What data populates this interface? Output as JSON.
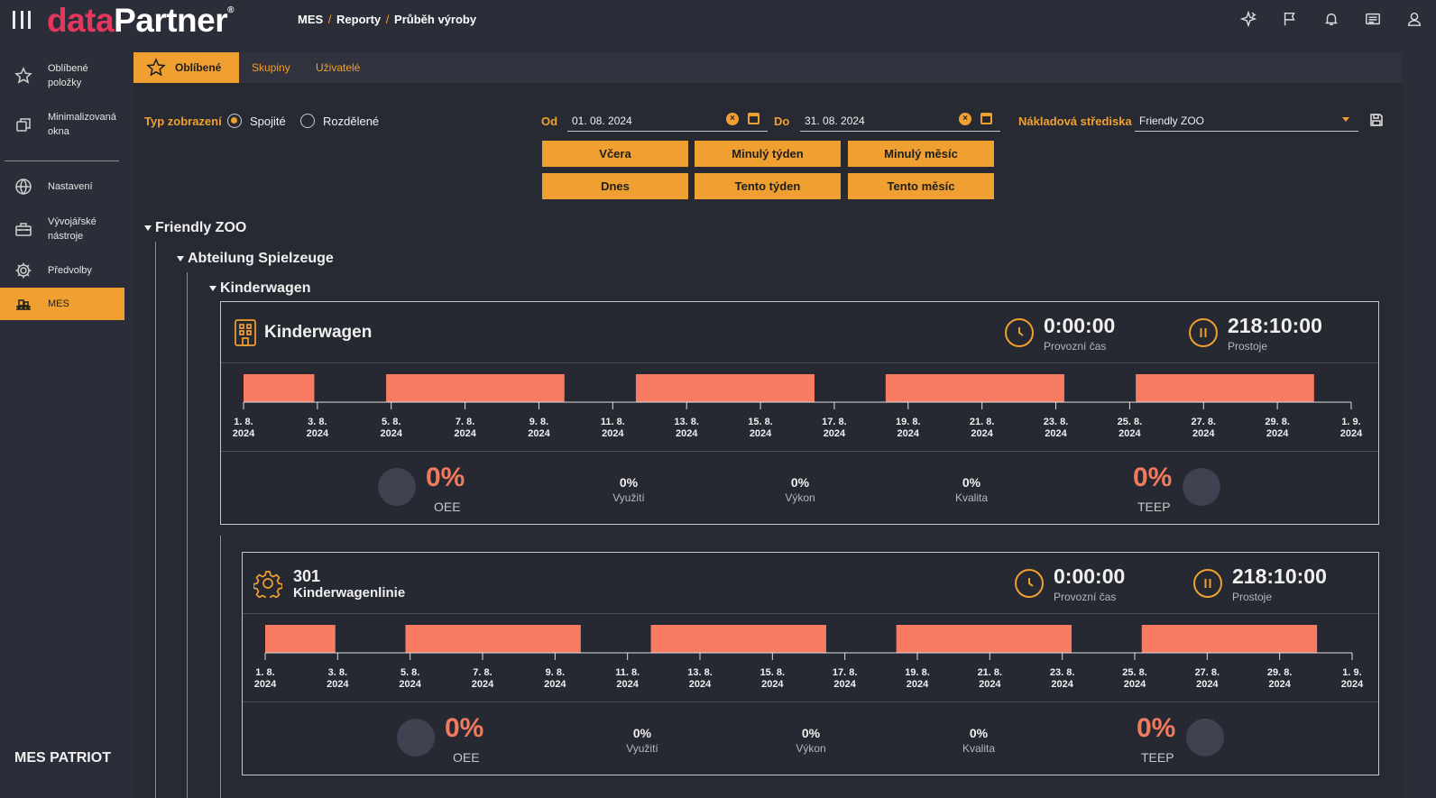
{
  "app": {
    "logo_part1": "data",
    "logo_part2": "Partner",
    "logo_reg": "®",
    "breadcrumb": [
      "MES",
      "Reporty",
      "Průběh výroby"
    ],
    "breadcrumb_sep": "/"
  },
  "topbar": {
    "icons": [
      "ai-sparkle-icon",
      "flag-icon",
      "bell-icon",
      "news-icon",
      "user-icon"
    ]
  },
  "sidebar": {
    "items": [
      {
        "label": "Oblíbené položky",
        "icon": "star-icon"
      },
      {
        "label": "Minimalizovaná okna",
        "icon": "windows-icon"
      },
      {
        "label": "Nastavení",
        "icon": "globe-icon"
      },
      {
        "label": "Vývojářské nástroje",
        "icon": "toolbox-icon"
      },
      {
        "label": "Předvolby",
        "icon": "gear-icon"
      },
      {
        "label": "MES",
        "icon": "conveyor-icon"
      }
    ],
    "footer": "MES PATRIOT"
  },
  "tabs": [
    "Oblíbené",
    "Skupiny",
    "Uživatelé"
  ],
  "filters": {
    "view_type_label": "Typ zobrazení",
    "view_options": [
      "Spojité",
      "Rozdělené"
    ],
    "from_label": "Od",
    "from_value": "01. 08. 2024",
    "to_label": "Do",
    "to_value": "31. 08. 2024",
    "cost_center_label": "Nákladová střediska",
    "cost_center_value": "Friendly ZOO",
    "quick_buttons": [
      "Včera",
      "Minulý týden",
      "Minulý měsíc",
      "Dnes",
      "Tento týden",
      "Tento měsíc"
    ]
  },
  "tree": {
    "level1": "Friendly ZOO",
    "level2": "Abteilung Spielzeuge",
    "level3": "Kinderwagen"
  },
  "colors": {
    "accent": "#f0a030",
    "bar": "#f87c62",
    "kpi": "#f07a5d"
  },
  "cards": [
    {
      "code": "",
      "title": "Kinderwagen",
      "icon": "building-icon",
      "time_value": "0:00:00",
      "time_label": "Provozní čas",
      "downtime_value": "218:10:00",
      "downtime_label": "Prostoje",
      "ticks": [
        [
          "1. 8.",
          "2024"
        ],
        [
          "3. 8.",
          "2024"
        ],
        [
          "5. 8.",
          "2024"
        ],
        [
          "7. 8.",
          "2024"
        ],
        [
          "9. 8.",
          "2024"
        ],
        [
          "11. 8.",
          "2024"
        ],
        [
          "13. 8.",
          "2024"
        ],
        [
          "15. 8.",
          "2024"
        ],
        [
          "17. 8.",
          "2024"
        ],
        [
          "19. 8.",
          "2024"
        ],
        [
          "21. 8.",
          "2024"
        ],
        [
          "23. 8.",
          "2024"
        ],
        [
          "25. 8.",
          "2024"
        ],
        [
          "27. 8.",
          "2024"
        ],
        [
          "29. 8.",
          "2024"
        ],
        [
          "1. 9.",
          "2024"
        ]
      ],
      "segments": [
        [
          1.0,
          2.98
        ],
        [
          4.99,
          9.98
        ],
        [
          11.98,
          16.98
        ],
        [
          18.97,
          23.97
        ],
        [
          25.97,
          30.96
        ]
      ],
      "oee_value": "0%",
      "oee_label": "OEE",
      "util_value": "0%",
      "util_label": "Využití",
      "perf_value": "0%",
      "perf_label": "Výkon",
      "qual_value": "0%",
      "qual_label": "Kvalita",
      "teep_value": "0%",
      "teep_label": "TEEP"
    },
    {
      "code": "301",
      "title": "Kinderwagenlinie",
      "icon": "gear-icon",
      "time_value": "0:00:00",
      "time_label": "Provozní čas",
      "downtime_value": "218:10:00",
      "downtime_label": "Prostoje",
      "ticks": [
        [
          "1. 8.",
          "2024"
        ],
        [
          "3. 8.",
          "2024"
        ],
        [
          "5. 8.",
          "2024"
        ],
        [
          "7. 8.",
          "2024"
        ],
        [
          "9. 8.",
          "2024"
        ],
        [
          "11. 8.",
          "2024"
        ],
        [
          "13. 8.",
          "2024"
        ],
        [
          "15. 8.",
          "2024"
        ],
        [
          "17. 8.",
          "2024"
        ],
        [
          "19. 8.",
          "2024"
        ],
        [
          "21. 8.",
          "2024"
        ],
        [
          "23. 8.",
          "2024"
        ],
        [
          "25. 8.",
          "2024"
        ],
        [
          "27. 8.",
          "2024"
        ],
        [
          "29. 8.",
          "2024"
        ],
        [
          "1. 9.",
          "2024"
        ]
      ],
      "segments": [
        [
          1.0,
          3.0
        ],
        [
          5.0,
          10.0
        ],
        [
          12.0,
          17.0
        ],
        [
          19.0,
          24.0
        ],
        [
          26.0,
          31.0
        ]
      ],
      "oee_value": "0%",
      "oee_label": "OEE",
      "util_value": "0%",
      "util_label": "Využití",
      "perf_value": "0%",
      "perf_label": "Výkon",
      "qual_value": "0%",
      "qual_label": "Kvalita",
      "teep_value": "0%",
      "teep_label": "TEEP"
    }
  ]
}
